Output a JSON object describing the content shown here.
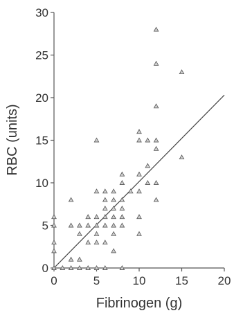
{
  "chart_data": {
    "type": "scatter",
    "title": "",
    "xlabel": "Fibrinogen (g)",
    "ylabel": "RBC (units)",
    "xlim": [
      0,
      20
    ],
    "ylim": [
      0,
      30
    ],
    "x_ticks": [
      "0",
      "5",
      "10",
      "15",
      "20"
    ],
    "y_ticks": [
      "0",
      "5",
      "10",
      "15",
      "20",
      "25",
      "30"
    ],
    "grid": false,
    "legend": "none",
    "marker": "triangle",
    "marker_color": "#555555",
    "line_color": "#444444",
    "points": [
      {
        "x": 0,
        "y": 0
      },
      {
        "x": 0,
        "y": 2
      },
      {
        "x": 0,
        "y": 3
      },
      {
        "x": 0,
        "y": 5
      },
      {
        "x": 0,
        "y": 6
      },
      {
        "x": 1,
        "y": 0
      },
      {
        "x": 2,
        "y": 0
      },
      {
        "x": 2,
        "y": 1
      },
      {
        "x": 2,
        "y": 5
      },
      {
        "x": 2,
        "y": 8
      },
      {
        "x": 3,
        "y": 0
      },
      {
        "x": 3,
        "y": 1
      },
      {
        "x": 3,
        "y": 4
      },
      {
        "x": 3,
        "y": 5
      },
      {
        "x": 4,
        "y": 0
      },
      {
        "x": 4,
        "y": 3
      },
      {
        "x": 4,
        "y": 5
      },
      {
        "x": 4,
        "y": 6
      },
      {
        "x": 5,
        "y": 0
      },
      {
        "x": 5,
        "y": 3
      },
      {
        "x": 5,
        "y": 4
      },
      {
        "x": 5,
        "y": 5
      },
      {
        "x": 5,
        "y": 6
      },
      {
        "x": 5,
        "y": 9
      },
      {
        "x": 5,
        "y": 15
      },
      {
        "x": 6,
        "y": 0
      },
      {
        "x": 6,
        "y": 3
      },
      {
        "x": 6,
        "y": 5
      },
      {
        "x": 6,
        "y": 6
      },
      {
        "x": 6,
        "y": 7
      },
      {
        "x": 6,
        "y": 8
      },
      {
        "x": 6,
        "y": 9
      },
      {
        "x": 7,
        "y": 2
      },
      {
        "x": 7,
        "y": 4
      },
      {
        "x": 7,
        "y": 5
      },
      {
        "x": 7,
        "y": 6
      },
      {
        "x": 7,
        "y": 7
      },
      {
        "x": 7,
        "y": 8
      },
      {
        "x": 7,
        "y": 9
      },
      {
        "x": 8,
        "y": 0
      },
      {
        "x": 8,
        "y": 5
      },
      {
        "x": 8,
        "y": 6
      },
      {
        "x": 8,
        "y": 7
      },
      {
        "x": 8,
        "y": 8
      },
      {
        "x": 8,
        "y": 10
      },
      {
        "x": 8,
        "y": 11
      },
      {
        "x": 9,
        "y": 9
      },
      {
        "x": 10,
        "y": 4
      },
      {
        "x": 10,
        "y": 6
      },
      {
        "x": 10,
        "y": 9
      },
      {
        "x": 10,
        "y": 11
      },
      {
        "x": 10,
        "y": 15
      },
      {
        "x": 10,
        "y": 16
      },
      {
        "x": 11,
        "y": 10
      },
      {
        "x": 11,
        "y": 12
      },
      {
        "x": 11,
        "y": 15
      },
      {
        "x": 12,
        "y": 8
      },
      {
        "x": 12,
        "y": 10
      },
      {
        "x": 12,
        "y": 14
      },
      {
        "x": 12,
        "y": 15
      },
      {
        "x": 12,
        "y": 19
      },
      {
        "x": 12,
        "y": 24
      },
      {
        "x": 12,
        "y": 28
      },
      {
        "x": 15,
        "y": 13
      },
      {
        "x": 15,
        "y": 23
      }
    ],
    "regression_line": {
      "x": [
        0,
        20
      ],
      "y": [
        0,
        20.3
      ]
    }
  }
}
